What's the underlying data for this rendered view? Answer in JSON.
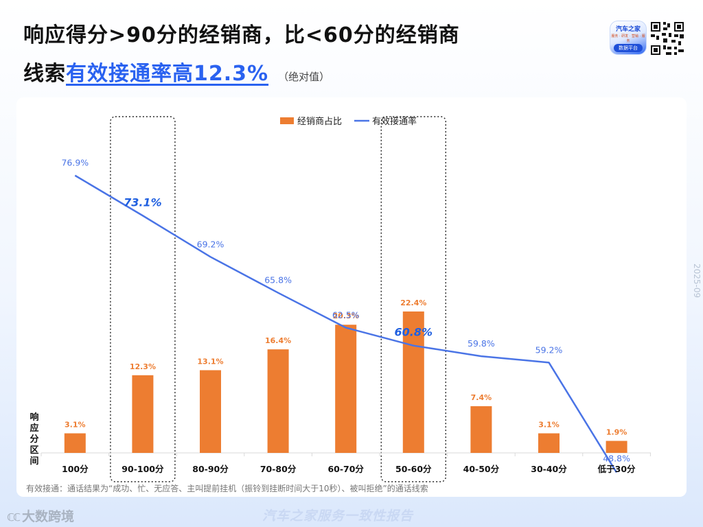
{
  "header": {
    "title_line1": "响应得分>90分的经销商，比<60分的经销商",
    "title_line2_prefix": "线索",
    "title_line2_highlight": "有效接通率高12.3%",
    "title_line2_note": "（绝对值）",
    "logo_text": "汽车之家",
    "logo_subtext": "服务 · 研发 · 营销 · 服务",
    "logo_badge": "数据平台",
    "qr_code_icon": "qr-code-icon"
  },
  "chart_data": {
    "type": "bar",
    "categories": [
      "100分",
      "90-100分",
      "80-90分",
      "70-80分",
      "60-70分",
      "50-60分",
      "40-50分",
      "30-40分",
      "低于30分"
    ],
    "xlabel": "响应分区间",
    "legend_position": "top-center",
    "series": [
      {
        "name": "经销商占比",
        "type": "bar",
        "color": "#ed7d31",
        "values": [
          3.1,
          12.3,
          13.1,
          16.4,
          20.3,
          22.4,
          7.4,
          3.1,
          1.9
        ],
        "labels": [
          "3.1%",
          "12.3%",
          "13.1%",
          "16.4%",
          "20.3%",
          "22.4%",
          "7.4%",
          "3.1%",
          "1.9%"
        ]
      },
      {
        "name": "有效接通率",
        "type": "line",
        "color": "#4a74e6",
        "values": [
          76.9,
          73.1,
          69.2,
          65.8,
          62.5,
          60.8,
          59.8,
          59.2,
          48.8
        ],
        "labels": [
          "76.9%",
          "73.1%",
          "69.2%",
          "65.8%",
          "62.5%",
          "60.8%",
          "59.8%",
          "59.2%",
          "48.8%"
        ]
      }
    ],
    "highlighted_categories": [
      "90-100分",
      "50-60分"
    ],
    "highlight_color": "#1f5fe0",
    "grid": false
  },
  "date": "2025-09",
  "footnote": "有效接通：通话结果为“成功、忙、无应答、主叫提前挂机（振铃到挂断时间大于10秒）、被叫拒绝”的通话线索",
  "brand_left_mark": "ℂℂ",
  "brand_left": "大数跨境",
  "brand_center": "汽车之家服务一致性报告"
}
